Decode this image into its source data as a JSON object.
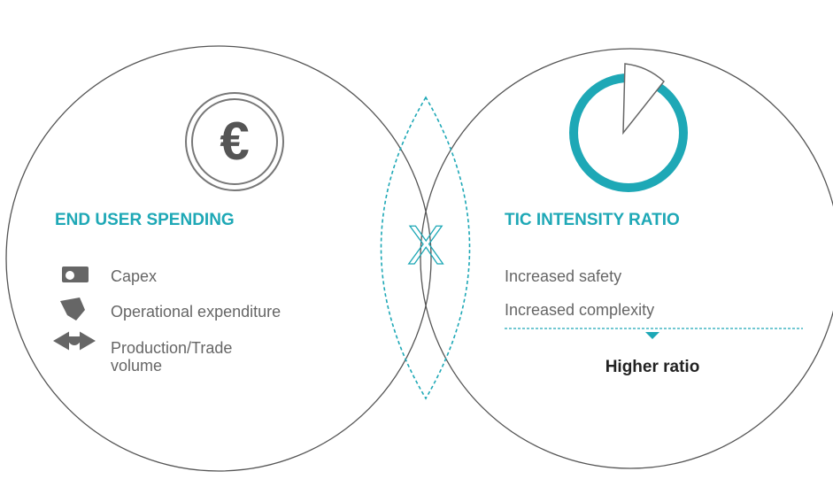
{
  "left": {
    "title": "END USER SPENDING",
    "icon_symbol": "€",
    "items": [
      "Capex",
      "Operational expenditure",
      "Production/Trade volume"
    ]
  },
  "center": {
    "symbol": "X"
  },
  "right": {
    "title": "TIC INTENSITY RATIO",
    "items": [
      "Increased safety",
      "Increased complexity"
    ],
    "result": "Higher ratio"
  }
}
